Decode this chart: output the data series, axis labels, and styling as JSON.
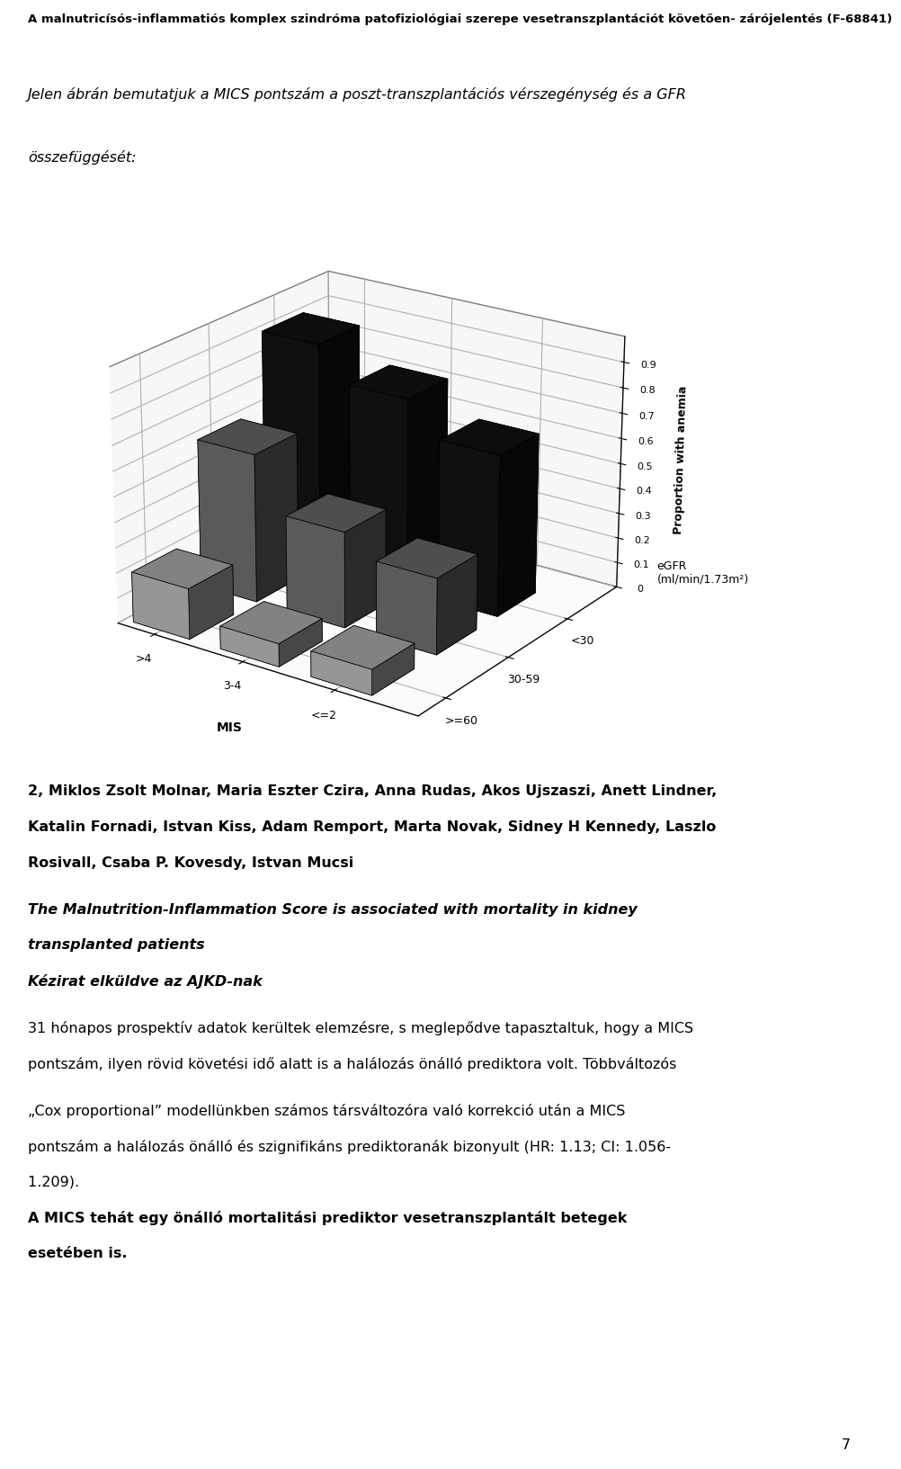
{
  "header": "A malnutricísós-inflammatiós komplex szindróma patofiziológiai szerepe vesetranszplantációt követően- zárójelentés (F-68841)",
  "subtitle1": "Jelen ábrán bemutatjuk a MICS pontszám a poszt-transzplantációs vérszegénység és a GFR",
  "subtitle2": "összefüggését:",
  "chart_ylabel": "Proportion with anemia",
  "chart_xlabel": "MIS",
  "egfr_label": "eGFR\n(ml/min/1.73m²)",
  "mis_categories": [
    ">4",
    "3-4",
    "<=2"
  ],
  "egfr_categories": [
    "<30",
    "30-59",
    ">=60"
  ],
  "data": [
    [
      0.9,
      0.59,
      0.2
    ],
    [
      0.77,
      0.38,
      0.09
    ],
    [
      0.64,
      0.3,
      0.1
    ]
  ],
  "bar_color_dark": "#111111",
  "bar_color_mid": "#666666",
  "bar_color_light": "#aaaaaa",
  "body_text": [
    "2, Miklos Zsolt Molnar, Maria Eszter Czira, Anna Rudas, Akos Ujszaszi, Anett Lindner,",
    "Katalin Fornadi, Istvan Kiss, Adam Remport, Marta Novak, Sidney H Kennedy, Laszlo",
    "Rosivall, Csaba P. Kovesdy, Istvan Mucsi"
  ],
  "title_line1": "The Malnutrition-Inflammation Score is associated with mortality in kidney",
  "title_line2": "transplanted patients",
  "kézirat_line": "Kézirat elküldve az AJKD-nak",
  "body_text2_1": "31 hónapos prospektív adatok kerültek elemzésre, s meglepődve tapasztaltuk, hogy a MICS",
  "body_text2_2": "pontszám, ilyen rövid követési idő alatt is a halálozás önálló prediktora volt. Többváltozós",
  "body_text3_1": "„Cox proportional” modellünkben számos társváltozóra való korrekció után a MICS",
  "body_text3_2": "pontszám a halálozás önálló és szignifikáns prediktoranák bizonyult (HR: 1.13; CI: 1.056-",
  "body_text3_3": "1.209). ",
  "bold_ending": "A MICS tehát egy önálló mortalitási prediktor vesetranszplantált betegek",
  "bold_ending2": "esetében is.",
  "page_number": "7",
  "bg_color": "#ffffff"
}
